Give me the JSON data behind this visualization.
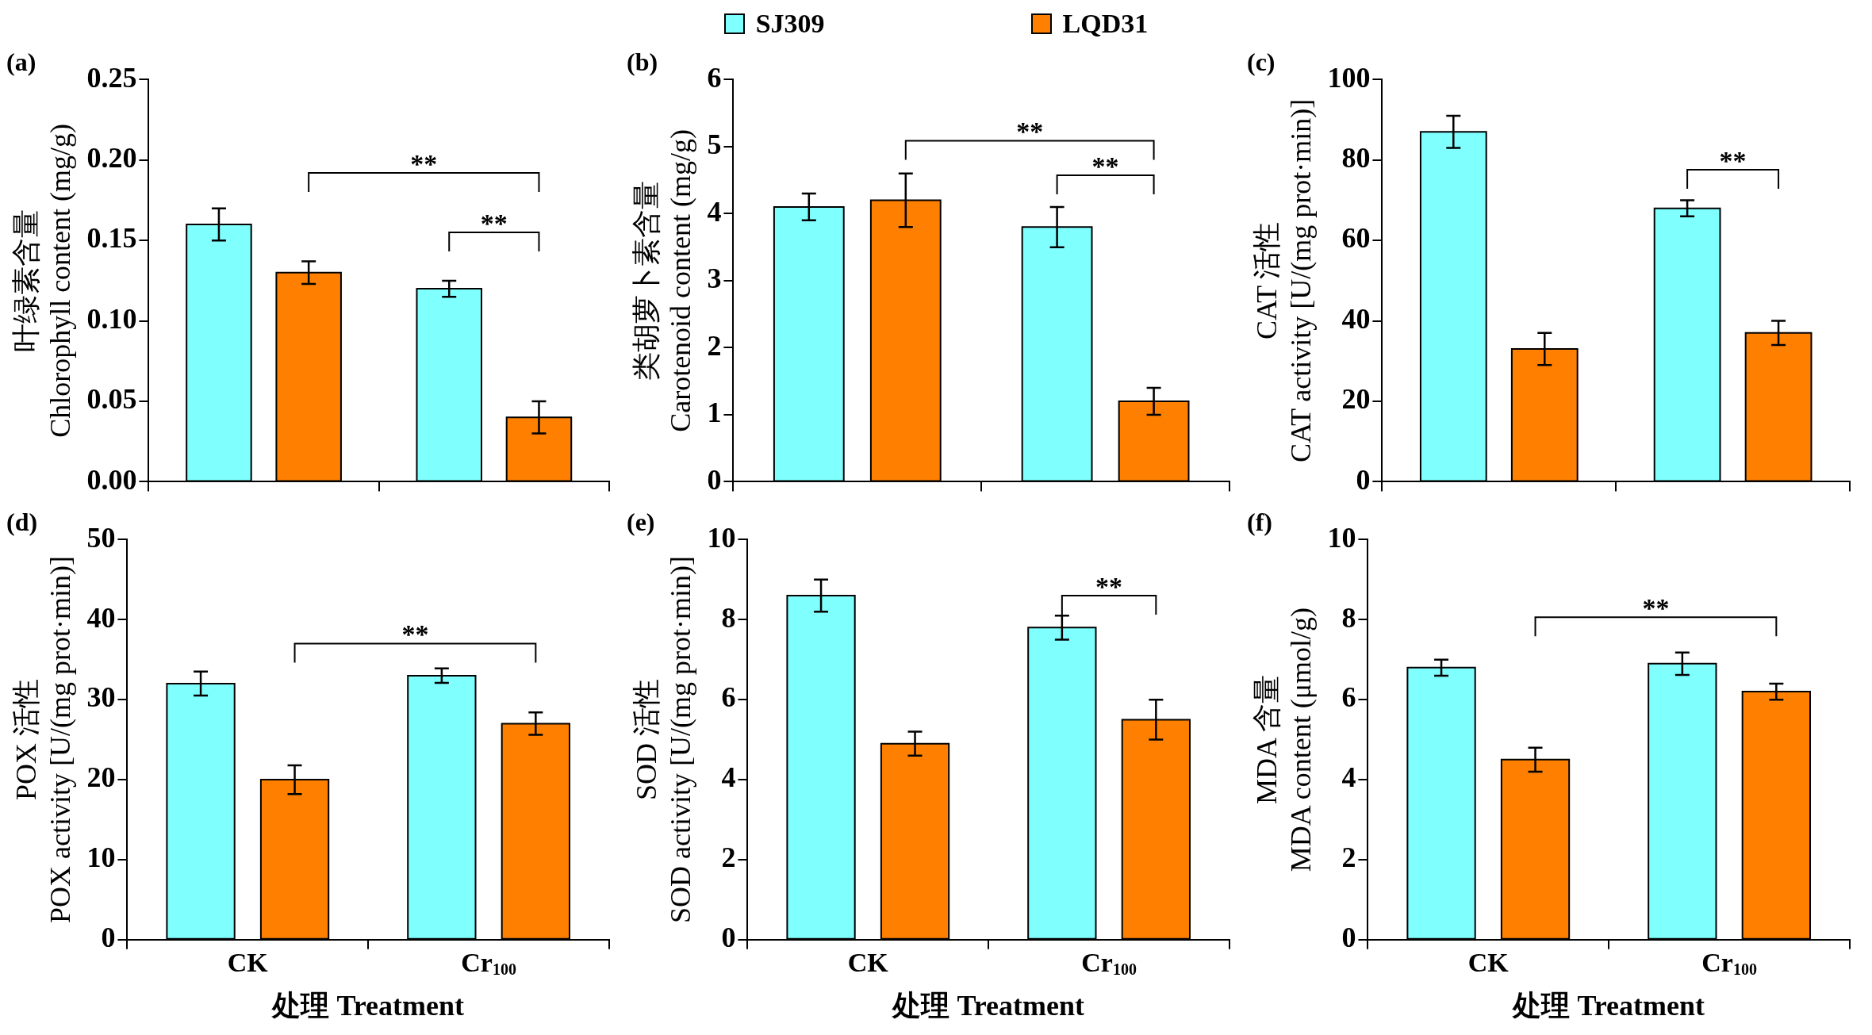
{
  "chart_data": [
    {
      "type": "bar",
      "title": "(a)",
      "ylabel": "叶绿素含量\nChlorophyll content (mg/g)",
      "categories": [
        null,
        null
      ],
      "tick_labels": "y",
      "legend": "top",
      "ylim": [
        0,
        0.25
      ],
      "yticks": [
        {
          "value": 0,
          "label": "0.00"
        },
        {
          "value": 0.05,
          "label": "0.05"
        },
        {
          "value": 0.1,
          "label": "0.10"
        },
        {
          "value": 0.15,
          "label": "0.15"
        },
        {
          "value": 0.2,
          "label": "0.20"
        },
        {
          "value": 0.25,
          "label": "0.25"
        }
      ],
      "series": [
        {
          "name": "SJ309",
          "color": "#80ffff",
          "values": [
            0.16,
            0.12
          ],
          "errors": [
            0.01,
            0.005
          ]
        },
        {
          "name": "LQD31",
          "color": "#ff8000",
          "values": [
            0.13,
            0.04
          ],
          "errors": [
            0.007,
            0.01
          ]
        }
      ],
      "annotations": [
        "**",
        "**"
      ]
    },
    {
      "type": "bar",
      "title": "(b)",
      "ylabel": "类胡萝卜素含量\nCarotenoid content (mg/g)",
      "categories": [
        null,
        null
      ],
      "tick_labels": "y",
      "ylim": [
        0,
        6
      ],
      "yticks": [
        0,
        1,
        2,
        3,
        4,
        5,
        6
      ],
      "series": [
        {
          "color": "#80ffff",
          "values": [
            4.1,
            3.8
          ],
          "errors": [
            0.2,
            0.3
          ]
        },
        {
          "color": "#ff8000",
          "values": [
            4.2,
            1.2
          ],
          "errors": [
            0.4,
            0.2
          ]
        }
      ],
      "annotations": [
        "**",
        "**"
      ]
    },
    {
      "type": "bar",
      "title": "(c)",
      "ylabel": "CAT 活性\nCAT activity [U/(mg prot·min)]",
      "categories": [
        null,
        null
      ],
      "tick_labels": "y",
      "ylim": [
        0,
        100
      ],
      "yticks": [
        0,
        20,
        40,
        60,
        80,
        100
      ],
      "series": [
        {
          "color": "#80ffff",
          "values": [
            87,
            68
          ],
          "errors": [
            4,
            2
          ]
        },
        {
          "color": "#ff8000",
          "values": [
            33,
            37
          ],
          "errors": [
            4,
            3
          ]
        }
      ],
      "annotations": [
        "**"
      ]
    },
    {
      "type": "bar",
      "title": "(d)",
      "ylabel": "POX 活性\nPOX activity [U/(mg prot·min)]",
      "xlabel": "处理 Treatment",
      "categories": [
        "CK",
        "Cr$_{100}$"
      ],
      "ylim": [
        0,
        50
      ],
      "yticks": [
        0,
        10,
        20,
        30,
        40,
        50
      ],
      "series": [
        {
          "color": "#80ffff",
          "values": [
            32,
            33
          ],
          "errors": [
            1.5,
            0.9
          ]
        },
        {
          "color": "#ff8000",
          "values": [
            20,
            27
          ],
          "errors": [
            1.8,
            1.4
          ]
        }
      ],
      "annotations": [
        "**"
      ]
    },
    {
      "type": "bar",
      "title": "(e)",
      "ylabel": "SOD 活性\nSOD activity [U/(mg prot·min)]",
      "xlabel": "处理 Treatment",
      "categories": [
        "CK",
        "Cr$_{100}$"
      ],
      "ylim": [
        0,
        10
      ],
      "yticks": [
        0,
        2,
        4,
        6,
        8,
        10
      ],
      "series": [
        {
          "color": "#80ffff",
          "values": [
            8.6,
            7.8
          ],
          "errors": [
            0.4,
            0.3
          ]
        },
        {
          "color": "#ff8000",
          "values": [
            4.9,
            5.5
          ],
          "errors": [
            0.3,
            0.5
          ]
        }
      ],
      "annotations": [
        "**"
      ]
    },
    {
      "type": "bar",
      "title": "(f)",
      "ylabel": "MDA 含量\nMDA content (μmol/g)",
      "xlabel": "处理 Treatment",
      "categories": [
        "CK",
        "Cr$_{100}$"
      ],
      "ylim": [
        0,
        10
      ],
      "yticks": [
        0,
        2,
        4,
        6,
        8,
        10
      ],
      "series": [
        {
          "color": "#80ffff",
          "values": [
            6.8,
            6.9
          ],
          "errors": [
            0.2,
            0.28
          ]
        },
        {
          "color": "#ff8000",
          "values": [
            4.5,
            6.2
          ],
          "errors": [
            0.3,
            0.2
          ]
        }
      ],
      "annotations": [
        "**"
      ]
    }
  ]
}
